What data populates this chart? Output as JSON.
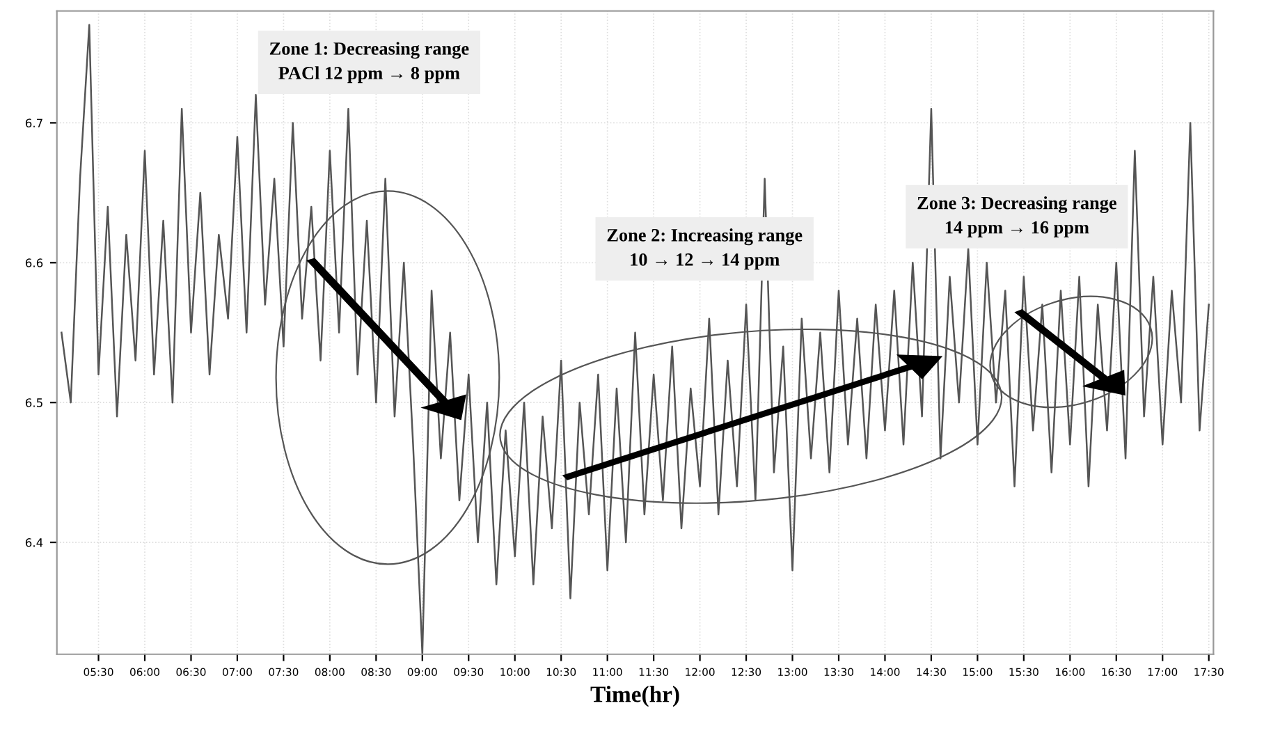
{
  "chart_data": {
    "type": "line",
    "xlabel": "Time(hr)",
    "x": [
      5.1,
      5.2,
      5.3,
      5.4,
      5.5,
      5.6,
      5.7,
      5.8,
      5.9,
      6.0,
      6.1,
      6.2,
      6.3,
      6.4,
      6.5,
      6.6,
      6.7,
      6.8,
      6.9,
      7.0,
      7.1,
      7.2,
      7.3,
      7.4,
      7.5,
      7.6,
      7.7,
      7.8,
      7.9,
      8.0,
      8.1,
      8.2,
      8.3,
      8.4,
      8.5,
      8.6,
      8.7,
      8.8,
      8.9,
      9.0,
      9.1,
      9.2,
      9.3,
      9.4,
      9.5,
      9.6,
      9.7,
      9.8,
      9.9,
      10.0,
      10.1,
      10.2,
      10.3,
      10.4,
      10.5,
      10.6,
      10.7,
      10.8,
      10.9,
      11.0,
      11.1,
      11.2,
      11.3,
      11.4,
      11.5,
      11.6,
      11.7,
      11.8,
      11.9,
      12.0,
      12.1,
      12.2,
      12.3,
      12.4,
      12.5,
      12.6,
      12.7,
      12.8,
      12.9,
      13.0,
      13.1,
      13.2,
      13.3,
      13.4,
      13.5,
      13.6,
      13.7,
      13.8,
      13.9,
      14.0,
      14.1,
      14.2,
      14.3,
      14.4,
      14.5,
      14.6,
      14.7,
      14.8,
      14.9,
      15.0,
      15.1,
      15.2,
      15.3,
      15.4,
      15.5,
      15.6,
      15.7,
      15.8,
      15.9,
      16.0,
      16.1,
      16.2,
      16.3,
      16.4,
      16.5,
      16.6,
      16.7,
      16.8,
      16.9,
      17.0,
      17.1,
      17.2,
      17.3,
      17.4,
      17.5
    ],
    "series": [
      {
        "color": "#555555",
        "values": [
          6.55,
          6.5,
          6.66,
          6.77,
          6.52,
          6.64,
          6.49,
          6.62,
          6.53,
          6.68,
          6.52,
          6.63,
          6.5,
          6.71,
          6.55,
          6.65,
          6.52,
          6.62,
          6.56,
          6.69,
          6.55,
          6.72,
          6.57,
          6.66,
          6.54,
          6.7,
          6.56,
          6.64,
          6.53,
          6.68,
          6.55,
          6.71,
          6.52,
          6.63,
          6.5,
          6.66,
          6.49,
          6.6,
          6.47,
          6.32,
          6.58,
          6.46,
          6.55,
          6.43,
          6.52,
          6.4,
          6.5,
          6.37,
          6.48,
          6.39,
          6.5,
          6.37,
          6.49,
          6.41,
          6.53,
          6.36,
          6.5,
          6.42,
          6.52,
          6.38,
          6.51,
          6.4,
          6.55,
          6.42,
          6.52,
          6.43,
          6.54,
          6.41,
          6.51,
          6.44,
          6.56,
          6.42,
          6.53,
          6.44,
          6.57,
          6.43,
          6.66,
          6.45,
          6.54,
          6.38,
          6.56,
          6.46,
          6.55,
          6.45,
          6.58,
          6.47,
          6.56,
          6.46,
          6.57,
          6.48,
          6.58,
          6.47,
          6.6,
          6.49,
          6.71,
          6.46,
          6.59,
          6.5,
          6.61,
          6.47,
          6.6,
          6.5,
          6.58,
          6.44,
          6.59,
          6.48,
          6.57,
          6.45,
          6.58,
          6.47,
          6.59,
          6.44,
          6.57,
          6.48,
          6.6,
          6.46,
          6.68,
          6.49,
          6.59,
          6.47,
          6.58,
          6.5,
          6.7,
          6.48,
          6.57
        ]
      }
    ],
    "xlim": [
      5.05,
      17.55
    ],
    "xticks": [
      {
        "value": 5.5,
        "label": "05:30"
      },
      {
        "value": 6.0,
        "label": "06:00"
      },
      {
        "value": 6.5,
        "label": "06:30"
      },
      {
        "value": 7.0,
        "label": "07:00"
      },
      {
        "value": 7.5,
        "label": "07:30"
      },
      {
        "value": 8.0,
        "label": "08:00"
      },
      {
        "value": 8.5,
        "label": "08:30"
      },
      {
        "value": 9.0,
        "label": "09:00"
      },
      {
        "value": 9.5,
        "label": "09:30"
      },
      {
        "value": 10.0,
        "label": "10:00"
      },
      {
        "value": 10.5,
        "label": "10:30"
      },
      {
        "value": 11.0,
        "label": "11:00"
      },
      {
        "value": 11.5,
        "label": "11:30"
      },
      {
        "value": 12.0,
        "label": "12:00"
      },
      {
        "value": 12.5,
        "label": "12:30"
      },
      {
        "value": 13.0,
        "label": "13:00"
      },
      {
        "value": 13.5,
        "label": "13:30"
      },
      {
        "value": 14.0,
        "label": "14:00"
      },
      {
        "value": 14.5,
        "label": "14:30"
      },
      {
        "value": 15.0,
        "label": "15:00"
      },
      {
        "value": 15.5,
        "label": "15:30"
      },
      {
        "value": 16.0,
        "label": "16:00"
      },
      {
        "value": 16.5,
        "label": "16:30"
      },
      {
        "value": 17.0,
        "label": "17:00"
      },
      {
        "value": 17.5,
        "label": "17:30"
      }
    ],
    "ylim": [
      6.32,
      6.78
    ],
    "yticks": [
      6.4,
      6.5,
      6.6,
      6.7
    ],
    "grid": true,
    "annotations": [
      "Zone 1: Decreasing range\nPACl 12 ppm → 8 ppm",
      "Zone 2: Increasing range\n10 → 12 → 14 ppm",
      "Zone 3: Decreasing range\n14 ppm → 16 ppm"
    ]
  }
}
